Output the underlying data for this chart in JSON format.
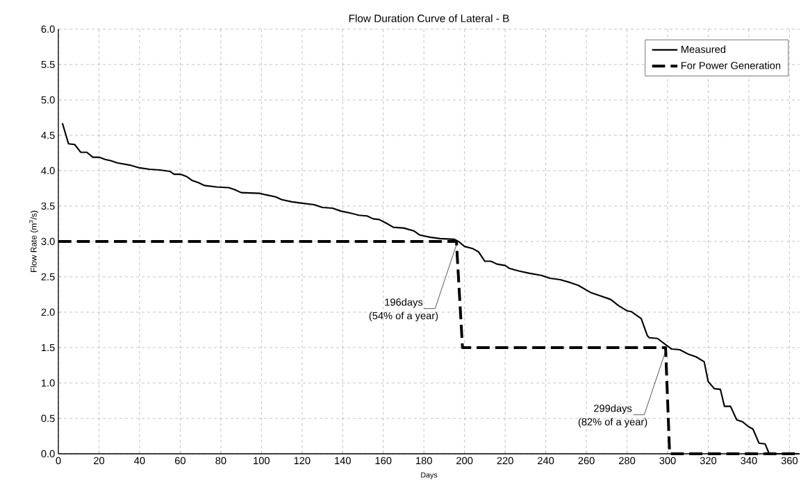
{
  "chart_data": {
    "type": "line",
    "title": "Flow Duration Curve of Lateral - B",
    "xlabel": "Days",
    "ylabel": "Flow Rate (m$^{3}$/s)",
    "series": [
      {
        "name": "Measured",
        "color": "#000000",
        "line_style": "solid",
        "x": [
          2,
          5,
          8,
          11,
          14,
          17,
          20,
          23,
          26,
          29,
          35,
          40,
          45,
          50,
          55,
          57,
          60,
          63,
          66,
          69,
          72,
          78,
          84,
          87,
          90,
          99,
          102,
          107,
          110,
          115,
          120,
          126,
          130,
          135,
          139,
          144,
          148,
          152,
          155,
          158,
          162,
          165,
          170,
          175,
          178,
          183,
          188,
          195,
          197,
          200,
          204,
          207,
          210,
          213,
          216,
          220,
          222,
          227,
          232,
          238,
          242,
          247,
          252,
          256,
          262,
          266,
          272,
          276,
          280,
          282,
          287,
          290,
          291,
          295,
          300,
          302,
          306,
          310,
          314,
          318,
          320,
          323,
          326,
          328,
          331,
          334,
          337,
          340,
          342,
          345,
          348,
          350,
          365
        ],
        "values": [
          4.67,
          4.38,
          4.37,
          4.26,
          4.26,
          4.19,
          4.19,
          4.16,
          4.14,
          4.11,
          4.08,
          4.04,
          4.02,
          4.01,
          3.99,
          3.95,
          3.95,
          3.92,
          3.86,
          3.83,
          3.79,
          3.77,
          3.76,
          3.73,
          3.69,
          3.68,
          3.66,
          3.63,
          3.59,
          3.56,
          3.54,
          3.52,
          3.48,
          3.47,
          3.43,
          3.4,
          3.37,
          3.36,
          3.32,
          3.31,
          3.25,
          3.2,
          3.19,
          3.15,
          3.09,
          3.06,
          3.04,
          3.03,
          3.0,
          2.93,
          2.9,
          2.85,
          2.72,
          2.72,
          2.68,
          2.66,
          2.62,
          2.58,
          2.55,
          2.52,
          2.48,
          2.46,
          2.42,
          2.38,
          2.28,
          2.24,
          2.18,
          2.09,
          2.02,
          2.01,
          1.91,
          1.67,
          1.64,
          1.63,
          1.52,
          1.48,
          1.47,
          1.41,
          1.37,
          1.3,
          1.02,
          0.92,
          0.91,
          0.67,
          0.67,
          0.48,
          0.45,
          0.38,
          0.35,
          0.15,
          0.14,
          0.0,
          0.0
        ]
      },
      {
        "name": "For Power Generation",
        "color": "#000000",
        "line_style": "dashed",
        "x": [
          0,
          196,
          199,
          299,
          301,
          365
        ],
        "values": [
          3.0,
          3.0,
          1.5,
          1.5,
          0.0,
          0.0
        ]
      }
    ],
    "annotations": [
      {
        "text": "196days",
        "x": 196,
        "y": 3.0
      },
      "(54% of a year)",
      {
        "text": "299days",
        "x": 299,
        "y": 1.5
      },
      "(82% of a year)"
    ],
    "xlim": [
      0,
      365
    ],
    "xticks": [
      0,
      20,
      40,
      60,
      80,
      100,
      120,
      140,
      160,
      180,
      200,
      220,
      240,
      260,
      280,
      300,
      320,
      340,
      360
    ],
    "ylim": [
      0,
      6
    ],
    "yticks": [
      {
        "value": 0,
        "label": "0.0"
      },
      {
        "value": 0.5,
        "label": "0.5"
      },
      {
        "value": 1,
        "label": "1.0"
      },
      {
        "value": 1.5,
        "label": "1.5"
      },
      {
        "value": 2,
        "label": "2.0"
      },
      {
        "value": 2.5,
        "label": "2.5"
      },
      {
        "value": 3,
        "label": "3.0"
      },
      {
        "value": 3.5,
        "label": "3.5"
      },
      {
        "value": 4,
        "label": "4.0"
      },
      {
        "value": 4.5,
        "label": "4.5"
      },
      {
        "value": 5,
        "label": "5.0"
      },
      {
        "value": 5.5,
        "label": "5.5"
      },
      {
        "value": 6,
        "label": "6.0"
      }
    ],
    "grid": true,
    "legend": "top right",
    "marker": "none"
  }
}
